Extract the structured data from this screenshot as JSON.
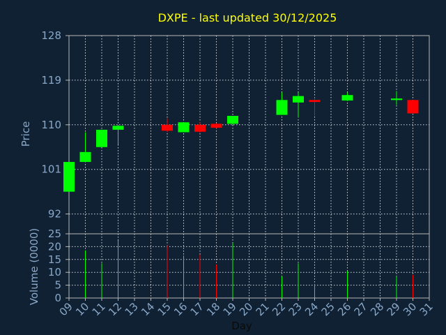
{
  "chart_data": {
    "type": "candlestick",
    "title": "DXPE - last updated 30/12/2025",
    "price_axis": {
      "label": "Price",
      "ylim": [
        88,
        128
      ],
      "ticks": [
        "128",
        "119",
        "110",
        "101",
        "92"
      ]
    },
    "volume_axis": {
      "label": "Volume (0000)",
      "ylim": [
        0,
        25
      ],
      "ticks": [
        "25",
        "20",
        "15",
        "10",
        "5",
        "0"
      ]
    },
    "xlabel": "Day",
    "x_ticks": [
      "09",
      "10",
      "11",
      "12",
      "13",
      "14",
      "15",
      "16",
      "17",
      "18",
      "19",
      "20",
      "21",
      "22",
      "23",
      "24",
      "25",
      "26",
      "27",
      "28",
      "29",
      "30",
      "31"
    ],
    "colors": {
      "up": "#00ff00",
      "down": "#ff0000",
      "grid": "#d8d8d8",
      "background": "#0f2133",
      "title": "#ffff00",
      "tick": "#8aa8c8"
    },
    "candles": [
      {
        "day": 9,
        "open": 96.5,
        "high": 102.5,
        "low": 96.5,
        "close": 102.5
      },
      {
        "day": 10,
        "open": 102.5,
        "high": 108.5,
        "low": 102.5,
        "close": 104.5
      },
      {
        "day": 11,
        "open": 105.5,
        "high": 109.0,
        "low": 105.5,
        "close": 109.0
      },
      {
        "day": 12,
        "open": 109.0,
        "high": 110.0,
        "low": 106.0,
        "close": 109.8
      },
      {
        "day": 15,
        "open": 110.0,
        "high": 111.3,
        "low": 108.5,
        "close": 108.8
      },
      {
        "day": 16,
        "open": 108.5,
        "high": 110.5,
        "low": 108.5,
        "close": 110.5
      },
      {
        "day": 17,
        "open": 110.0,
        "high": 110.5,
        "low": 108.4,
        "close": 108.6
      },
      {
        "day": 18,
        "open": 110.2,
        "high": 110.3,
        "low": 109.3,
        "close": 109.4
      },
      {
        "day": 19,
        "open": 110.2,
        "high": 111.8,
        "low": 110.0,
        "close": 111.8
      },
      {
        "day": 22,
        "open": 112.0,
        "high": 116.5,
        "low": 112.0,
        "close": 115.0
      },
      {
        "day": 23,
        "open": 114.5,
        "high": 116.5,
        "low": 111.5,
        "close": 115.8
      },
      {
        "day": 24,
        "open": 115.0,
        "high": 115.5,
        "low": 111.8,
        "close": 114.6
      },
      {
        "day": 26,
        "open": 114.9,
        "high": 116.5,
        "low": 114.8,
        "close": 116.0
      },
      {
        "day": 29,
        "open": 115.0,
        "high": 116.8,
        "low": 114.0,
        "close": 115.3
      },
      {
        "day": 30,
        "open": 115.0,
        "high": 115.0,
        "low": 112.3,
        "close": 112.3
      }
    ],
    "volumes": [
      {
        "day": 10,
        "value": 18.5,
        "dir": "up"
      },
      {
        "day": 11,
        "value": 13.5,
        "dir": "up"
      },
      {
        "day": 12,
        "value": 22.5,
        "dir": "up"
      },
      {
        "day": 15,
        "value": 20.5,
        "dir": "down"
      },
      {
        "day": 16,
        "value": 16.5,
        "dir": "up"
      },
      {
        "day": 17,
        "value": 17.0,
        "dir": "down"
      },
      {
        "day": 18,
        "value": 13.0,
        "dir": "down"
      },
      {
        "day": 19,
        "value": 21.5,
        "dir": "up"
      },
      {
        "day": 22,
        "value": 8.5,
        "dir": "up"
      },
      {
        "day": 23,
        "value": 13.5,
        "dir": "up"
      },
      {
        "day": 24,
        "value": 5.5,
        "dir": "up"
      },
      {
        "day": 26,
        "value": 10.5,
        "dir": "up"
      },
      {
        "day": 29,
        "value": 8.5,
        "dir": "up"
      },
      {
        "day": 30,
        "value": 9.0,
        "dir": "down"
      }
    ]
  }
}
